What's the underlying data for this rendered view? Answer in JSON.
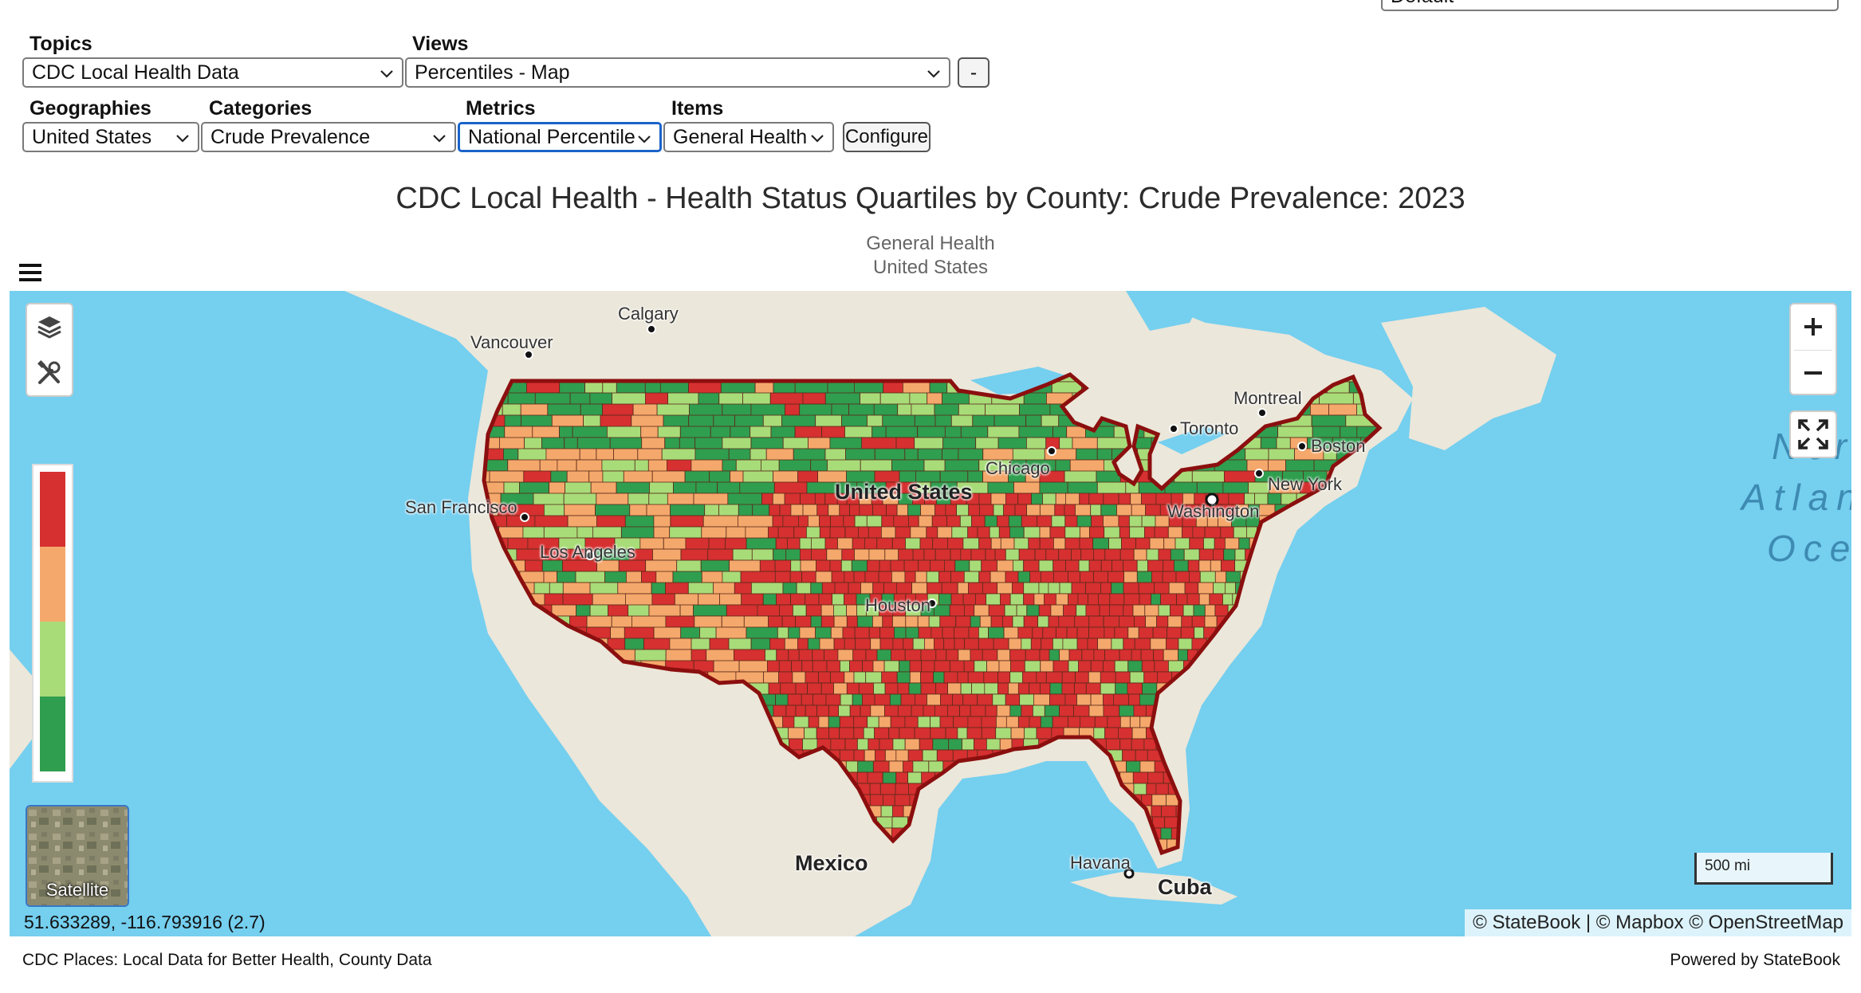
{
  "top_right_select": {
    "value": "Default"
  },
  "controls": {
    "topics": {
      "label": "Topics",
      "value": "CDC Local Health Data"
    },
    "views": {
      "label": "Views",
      "value": "Percentiles - Map"
    },
    "collapse_button": "-",
    "geographies": {
      "label": "Geographies",
      "value": "United States"
    },
    "categories": {
      "label": "Categories",
      "value": "Crude Prevalence"
    },
    "metrics": {
      "label": "Metrics",
      "value": "National Percentile"
    },
    "items": {
      "label": "Items",
      "value": "General Health"
    },
    "configure_button": "Configure"
  },
  "title": "CDC Local Health - Health Status Quartiles by County: Crude Prevalence: 2023",
  "subtitle_item": "General Health",
  "subtitle_geo": "United States",
  "menu_icon": "hamburger-menu-icon",
  "map": {
    "labels": {
      "calgary": "Calgary",
      "vancouver": "Vancouver",
      "montreal": "Montreal",
      "toronto": "Toronto",
      "boston": "Boston",
      "chicago": "Chicago",
      "new_york": "New York",
      "united_states": "United States",
      "washington": "Washington",
      "san_francisco": "San Francisco",
      "los_angeles": "Los Angeles",
      "houston": "Houston",
      "mexico": "Mexico",
      "havana": "Havana",
      "cuba": "Cuba",
      "ocean_1": "Nor",
      "ocean_2": "Atlan",
      "ocean_3": "Oce"
    },
    "controls": {
      "layers_icon": "layers-icon",
      "tools_icon": "tools-icon",
      "zoom_in_icon": "plus-icon",
      "zoom_out_icon": "minus-icon",
      "fullscreen_icon": "fullscreen-icon"
    },
    "legend_colors": [
      "#d63030",
      "#f5a86b",
      "#a8dc78",
      "#2f9e4f"
    ],
    "satellite_label": "Satellite",
    "scale": "500 mi",
    "attribution": "© StateBook | © Mapbox © OpenStreetMap",
    "coordinates": "51.633289, -116.793916  (2.7)"
  },
  "footer": {
    "source": "CDC Places: Local Data for Better Health, County Data",
    "powered_by": "Powered by StateBook"
  }
}
